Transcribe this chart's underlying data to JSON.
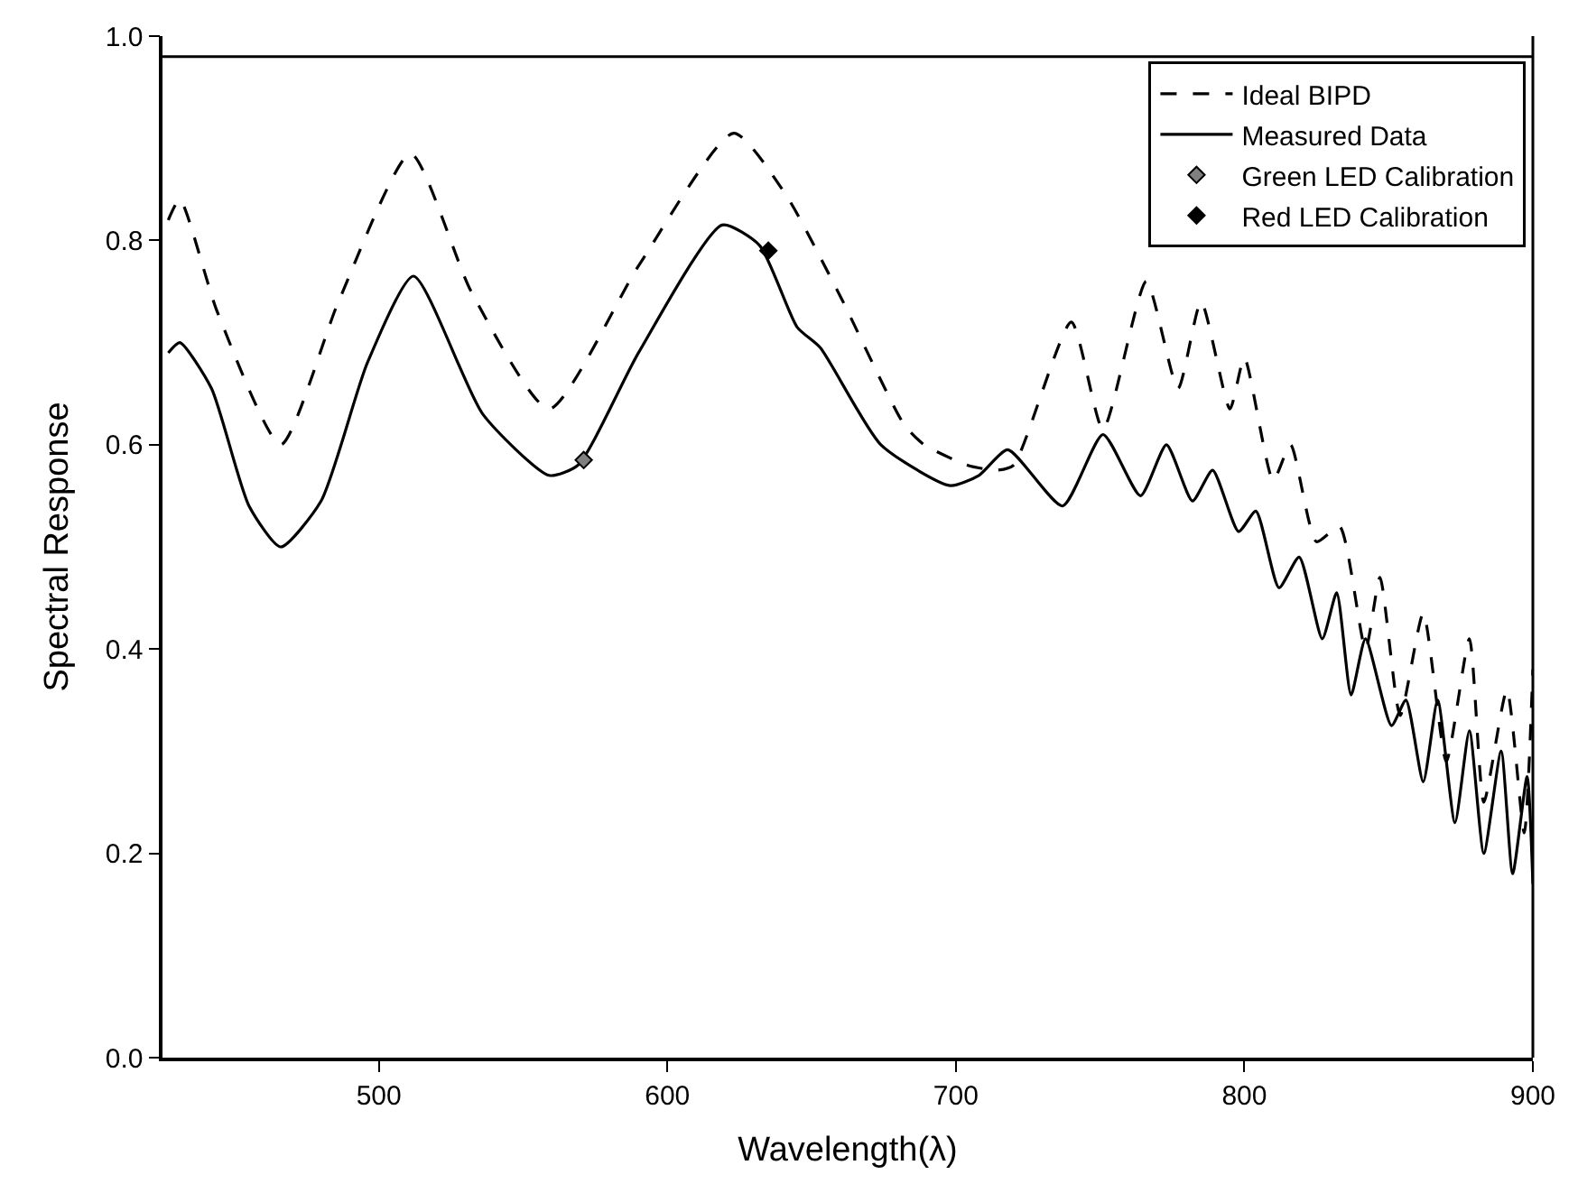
{
  "chart_data": {
    "type": "line",
    "xlabel": "Wavelength(λ)",
    "ylabel": "Spectral Response",
    "xlim": [
      425,
      900
    ],
    "ylim": [
      0,
      1.0
    ],
    "xticks": [
      500,
      600,
      700,
      800,
      900
    ],
    "yticks": [
      {
        "value": 0,
        "label": "0.0"
      },
      {
        "value": 0.2,
        "label": "0.2"
      },
      {
        "value": 0.4,
        "label": "0.4"
      },
      {
        "value": 0.6,
        "label": "0.6"
      },
      {
        "value": 0.8,
        "label": "0.8"
      },
      {
        "value": 1.0,
        "label": "1.0"
      }
    ],
    "legend": "top right",
    "ref_lines": [
      {
        "axis": "y",
        "value": 0.98,
        "label": null,
        "color": "#000000",
        "line_style": "solid"
      }
    ],
    "series": [
      {
        "name": "Ideal BIPD",
        "color": "#000000",
        "line_style": "dashed",
        "marker": "none",
        "x": [
          427,
          431,
          444,
          466,
          486,
          511,
          532,
          559,
          590,
          623,
          641,
          660,
          682,
          689,
          704,
          714,
          720,
          740,
          751,
          766,
          777,
          785,
          795,
          800,
          810,
          816,
          825,
          833,
          842,
          847,
          854,
          862,
          870,
          878,
          883,
          891,
          897,
          900
        ],
        "values": [
          0.82,
          0.84,
          0.73,
          0.6,
          0.74,
          0.885,
          0.75,
          0.635,
          0.775,
          0.905,
          0.845,
          0.745,
          0.62,
          0.6,
          0.58,
          0.575,
          0.58,
          0.72,
          0.615,
          0.76,
          0.655,
          0.74,
          0.635,
          0.685,
          0.565,
          0.6,
          0.505,
          0.52,
          0.4,
          0.47,
          0.335,
          0.435,
          0.29,
          0.41,
          0.25,
          0.36,
          0.22,
          0.38
        ]
      },
      {
        "name": "Measured Data",
        "color": "#000000",
        "line_style": "solid",
        "marker": "none",
        "x": [
          427,
          431,
          442,
          455,
          466,
          480,
          496,
          512,
          536,
          559,
          569,
          590,
          619,
          632,
          645,
          653,
          674,
          698,
          708,
          718,
          737,
          751,
          764,
          773,
          782,
          789,
          798,
          804,
          812,
          819,
          827,
          832,
          837,
          842,
          851,
          856,
          862,
          867,
          873,
          878,
          883,
          889,
          893,
          898,
          900
        ],
        "values": [
          0.69,
          0.7,
          0.655,
          0.54,
          0.5,
          0.545,
          0.68,
          0.765,
          0.63,
          0.57,
          0.58,
          0.69,
          0.815,
          0.795,
          0.715,
          0.695,
          0.6,
          0.56,
          0.57,
          0.595,
          0.54,
          0.61,
          0.55,
          0.6,
          0.545,
          0.575,
          0.515,
          0.535,
          0.46,
          0.49,
          0.41,
          0.455,
          0.355,
          0.41,
          0.325,
          0.35,
          0.27,
          0.35,
          0.23,
          0.32,
          0.2,
          0.3,
          0.18,
          0.275,
          0.17
        ]
      },
      {
        "name": "Green LED Calibration",
        "type": "scatter",
        "color": "#808080",
        "marker": "diamond",
        "x": [
          571
        ],
        "values": [
          0.585
        ]
      },
      {
        "name": "Red LED Calibration",
        "type": "scatter",
        "color": "#000000",
        "marker": "diamond",
        "x": [
          635
        ],
        "values": [
          0.79
        ]
      }
    ]
  }
}
